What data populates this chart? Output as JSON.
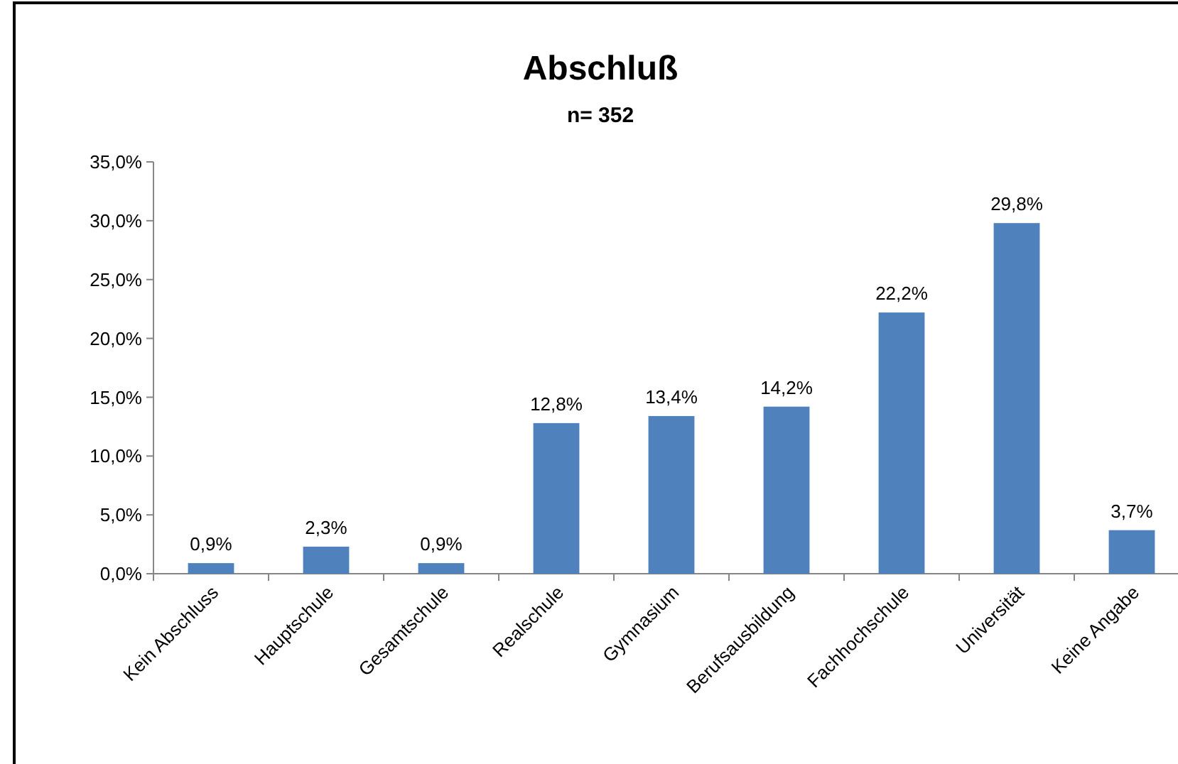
{
  "chart_data": {
    "type": "bar",
    "title": "Abschluß",
    "subtitle": "n= 352",
    "categories": [
      "Kein Abschluss",
      "Hauptschule",
      "Gesamtschule",
      "Realschule",
      "Gymnasium",
      "Berufsausbildung",
      "Fachhochschule",
      "Universität",
      "Keine Angabe"
    ],
    "values": [
      0.9,
      2.3,
      0.9,
      12.8,
      13.4,
      14.2,
      22.2,
      29.8,
      3.7
    ],
    "value_labels": [
      "0,9%",
      "2,3%",
      "0,9%",
      "12,8%",
      "13,4%",
      "14,2%",
      "22,2%",
      "29,8%",
      "3,7%"
    ],
    "color": "#4f81bd",
    "ylim": [
      0,
      35
    ],
    "yticks": [
      {
        "value": 0,
        "label": "0,0%"
      },
      {
        "value": 5,
        "label": "5,0%"
      },
      {
        "value": 10,
        "label": "10,0%"
      },
      {
        "value": 15,
        "label": "15,0%"
      },
      {
        "value": 20,
        "label": "20,0%"
      },
      {
        "value": 25,
        "label": "25,0%"
      },
      {
        "value": 30,
        "label": "30,0%"
      },
      {
        "value": 35,
        "label": "35,0%"
      }
    ],
    "grid": false
  }
}
